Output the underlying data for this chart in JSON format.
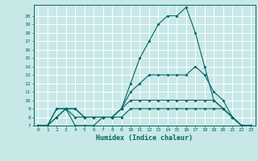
{
  "xlabel": "Humidex (Indice chaleur)",
  "bg_color": "#c8e8e8",
  "grid_color": "#ffffff",
  "line_color": "#006666",
  "x": [
    0,
    1,
    2,
    3,
    4,
    5,
    6,
    7,
    8,
    9,
    10,
    11,
    12,
    13,
    14,
    15,
    16,
    17,
    18,
    19,
    20,
    21,
    22,
    23
  ],
  "line1": [
    7,
    7,
    8,
    9,
    9,
    8,
    8,
    8,
    8,
    9,
    12,
    15,
    17,
    19,
    20,
    20,
    21,
    18,
    14,
    10,
    9,
    8,
    7,
    7
  ],
  "line2": [
    7,
    7,
    9,
    9,
    8,
    8,
    8,
    8,
    8,
    9,
    10,
    10,
    10,
    10,
    10,
    10,
    10,
    10,
    10,
    10,
    9,
    8,
    7,
    7
  ],
  "line3": [
    7,
    7,
    9,
    9,
    7,
    7,
    7,
    8,
    8,
    8,
    9,
    9,
    9,
    9,
    9,
    9,
    9,
    9,
    9,
    9,
    9,
    8,
    7,
    7
  ],
  "line4": [
    7,
    7,
    8,
    9,
    9,
    8,
    8,
    8,
    8,
    9,
    11,
    12,
    13,
    13,
    13,
    13,
    13,
    14,
    13,
    11,
    10,
    8,
    7,
    7
  ],
  "ylim": [
    7,
    21
  ],
  "yticks": [
    7,
    8,
    9,
    10,
    11,
    12,
    13,
    14,
    15,
    16,
    17,
    18,
    19,
    20
  ],
  "xlim": [
    -0.5,
    23.5
  ],
  "xticks": [
    0,
    1,
    2,
    3,
    4,
    5,
    6,
    7,
    8,
    9,
    10,
    11,
    12,
    13,
    14,
    15,
    16,
    17,
    18,
    19,
    20,
    21,
    22,
    23
  ]
}
